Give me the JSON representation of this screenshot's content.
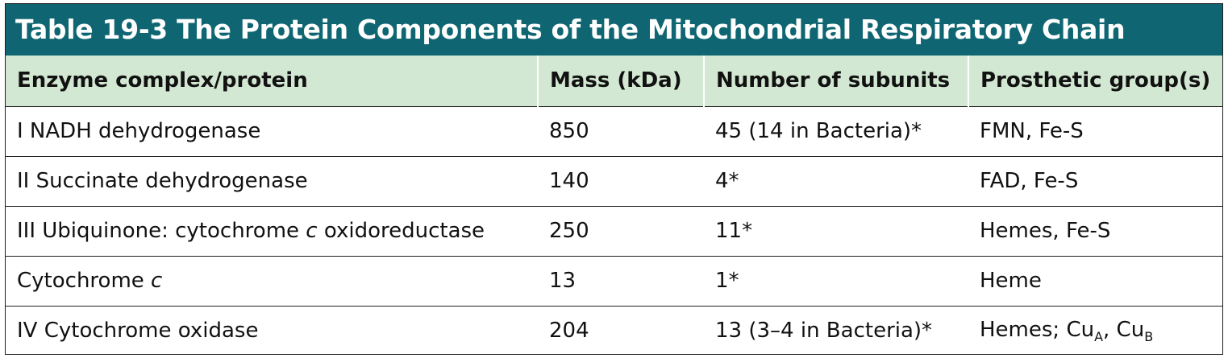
{
  "table": {
    "title": "Table 19-3 The Protein Components of the Mitochondrial Respiratory Chain",
    "headers": [
      "Enzyme complex/protein",
      "Mass (kDa)",
      "Number of subunits",
      "Prosthetic group(s)"
    ],
    "rows": [
      {
        "protein": {
          "pre": "I NADH dehydrogenase",
          "italic": "",
          "post": ""
        },
        "mass": "850",
        "subunits": "45 (14 in Bacteria)*",
        "prosthetic": "FMN, Fe-S"
      },
      {
        "protein": {
          "pre": "II Succinate dehydrogenase",
          "italic": "",
          "post": ""
        },
        "mass": "140",
        "subunits": "4*",
        "prosthetic": "FAD, Fe-S"
      },
      {
        "protein": {
          "pre": "III Ubiquinone: cytochrome ",
          "italic": "c",
          "post": " oxidoreductase"
        },
        "mass": "250",
        "subunits": "11*",
        "prosthetic": "Hemes, Fe-S"
      },
      {
        "protein": {
          "pre": "Cytochrome ",
          "italic": "c",
          "post": ""
        },
        "mass": "13",
        "subunits": "1*",
        "prosthetic": "Heme"
      },
      {
        "protein": {
          "pre": "IV Cytochrome oxidase",
          "italic": "",
          "post": ""
        },
        "mass": "204",
        "subunits": "13 (3–4 in Bacteria)*",
        "prosthetic_parts": {
          "pre": "Hemes; Cu",
          "sub_a": "A",
          "mid": ", Cu",
          "sub_b": "B"
        }
      }
    ]
  }
}
